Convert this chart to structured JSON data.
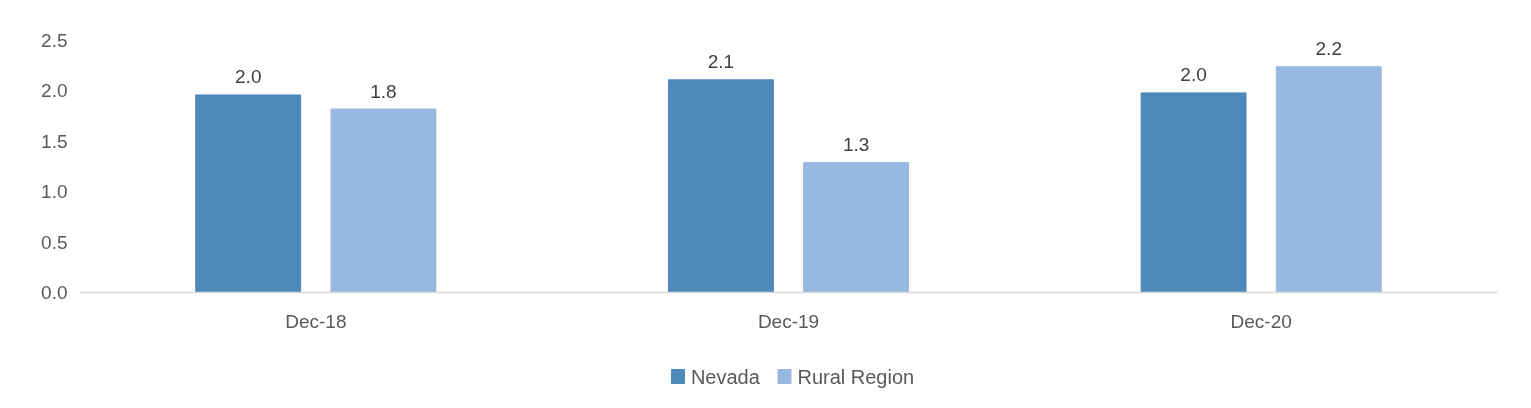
{
  "chart_data": {
    "type": "bar",
    "categories": [
      "Dec-18",
      "Dec-19",
      "Dec-20"
    ],
    "series": [
      {
        "name": "Nevada",
        "color": "#4f88bb",
        "values": [
          1.96,
          2.11,
          1.98
        ],
        "value_labels": [
          "2.0",
          "2.1",
          "2.0"
        ]
      },
      {
        "name": "Rural Region",
        "color": "#98b9df",
        "values": [
          1.82,
          1.29,
          2.24
        ],
        "value_labels": [
          "1.8",
          "1.3",
          "2.2"
        ]
      }
    ],
    "ylim": [
      0,
      2.5
    ],
    "yticks": [
      {
        "value": 0,
        "label": "0.0"
      },
      0.5,
      {
        "value": 1,
        "label": "1.0"
      },
      1.5,
      {
        "value": 2,
        "label": "2.0"
      },
      2.5
    ],
    "legend": "bottom"
  }
}
